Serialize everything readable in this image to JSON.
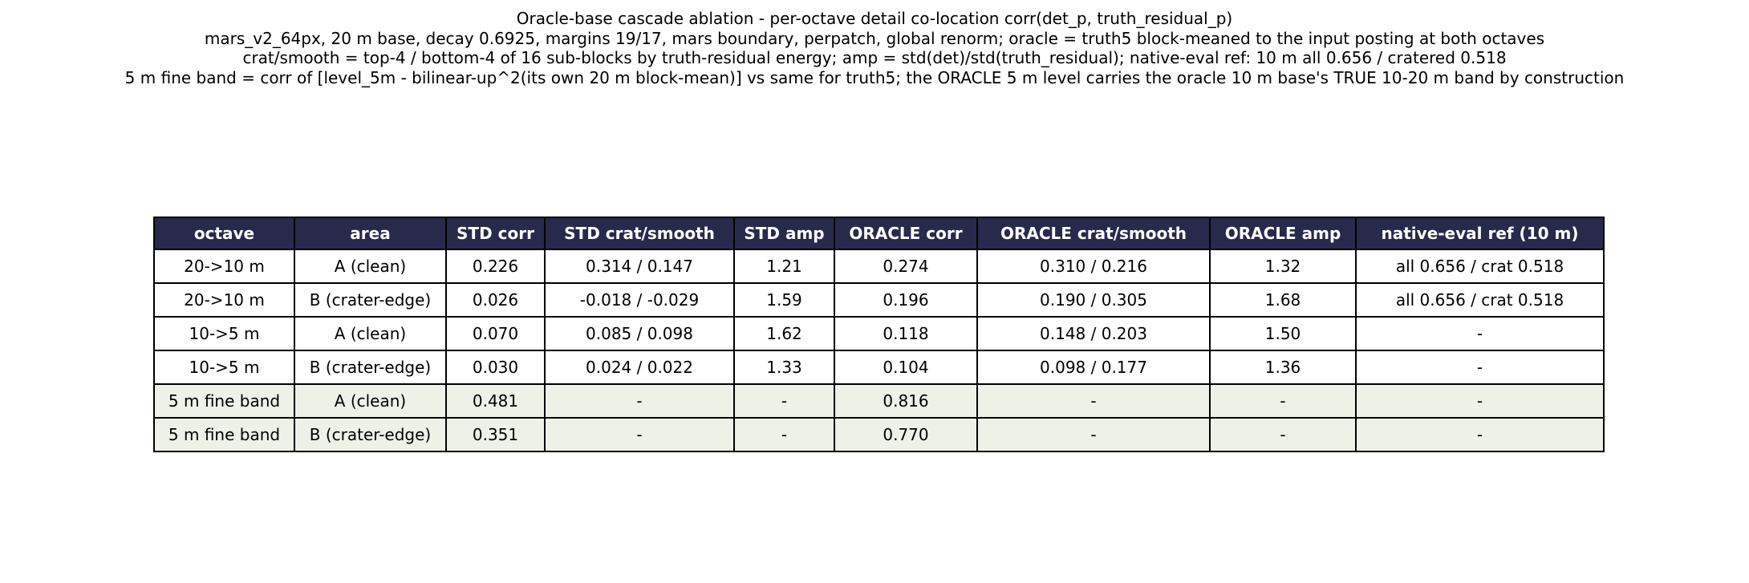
{
  "title": [
    "Oracle-base cascade ablation - per-octave detail co-location corr(det_p, truth_residual_p)",
    "mars_v2_64px, 20 m base, decay 0.6925, margins 19/17, mars boundary, perpatch, global renorm; oracle = truth5 block-meaned to the input posting at both octaves",
    "crat/smooth = top-4 / bottom-4 of 16 sub-blocks by truth-residual energy; amp = std(det)/std(truth_residual); native-eval ref: 10 m all 0.656 / cratered 0.518",
    "5 m fine band = corr of [level_5m - bilinear-up^2(its own 20 m block-mean)] vs same for truth5; the ORACLE 5 m level carries the oracle 10 m base's TRUE 10-20 m band by construction"
  ],
  "table": {
    "header": [
      "octave",
      "area",
      "STD corr",
      "STD crat/smooth",
      "STD amp",
      "ORACLE corr",
      "ORACLE crat/smooth",
      "ORACLE amp",
      "native-eval ref (10 m)"
    ],
    "rows": [
      [
        "20->10 m",
        "A (clean)",
        "0.226",
        "0.314 / 0.147",
        "1.21",
        "0.274",
        "0.310 / 0.216",
        "1.32",
        "all 0.656 / crat 0.518"
      ],
      [
        "20->10 m",
        "B (crater-edge)",
        "0.026",
        "-0.018 / -0.029",
        "1.59",
        "0.196",
        "0.190 / 0.305",
        "1.68",
        "all 0.656 / crat 0.518"
      ],
      [
        "10->5 m",
        "A (clean)",
        "0.070",
        "0.085 / 0.098",
        "1.62",
        "0.118",
        "0.148 / 0.203",
        "1.50",
        "-"
      ],
      [
        "10->5 m",
        "B (crater-edge)",
        "0.030",
        "0.024 / 0.022",
        "1.33",
        "0.104",
        "0.098 / 0.177",
        "1.36",
        "-"
      ],
      [
        "5 m fine band",
        "A (clean)",
        "0.481",
        "-",
        "-",
        "0.816",
        "-",
        "-",
        "-"
      ],
      [
        "5 m fine band",
        "B (crater-edge)",
        "0.351",
        "-",
        "-",
        "0.770",
        "-",
        "-",
        "-"
      ]
    ]
  }
}
